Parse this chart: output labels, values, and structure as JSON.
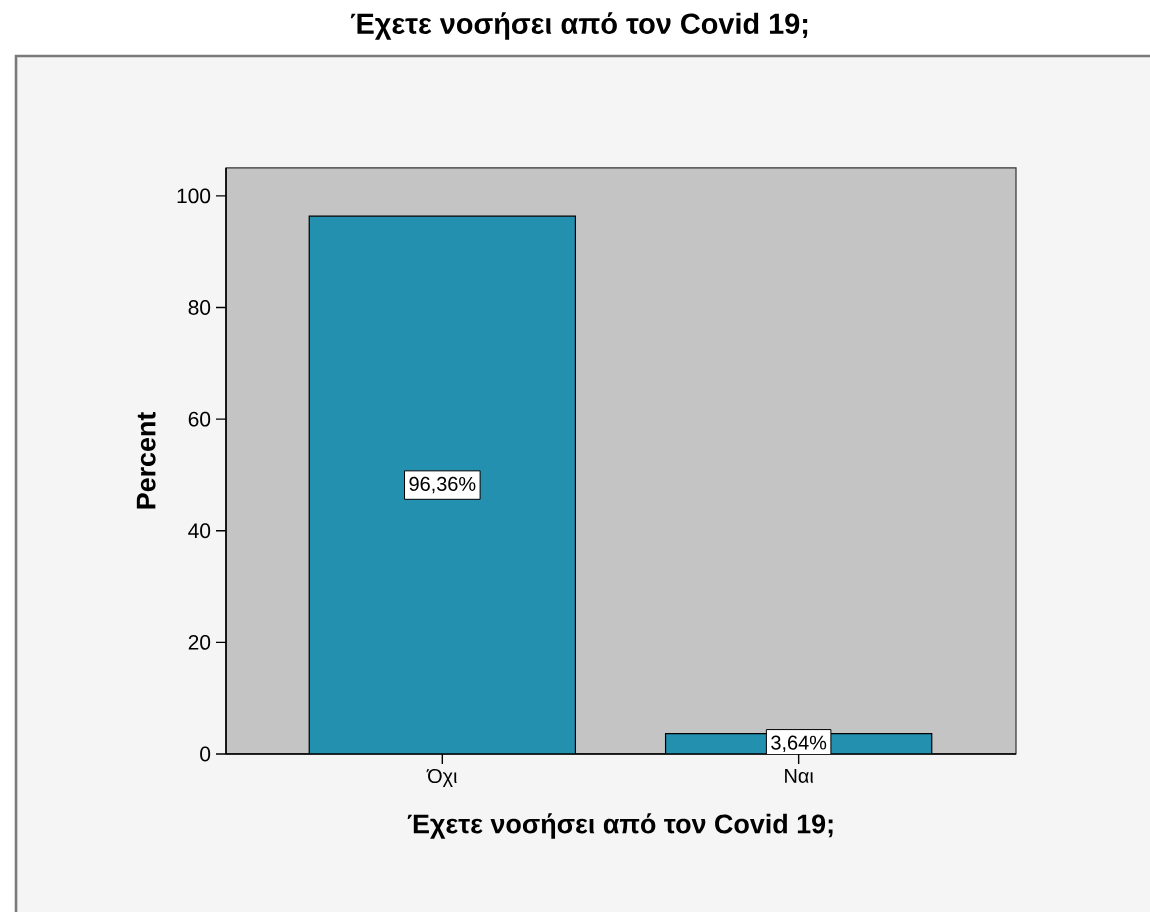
{
  "chart_data": {
    "type": "bar",
    "title": "Έχετε νοσήσει από τον Covid 19;",
    "xlabel": "Έχετε νοσήσει από τον Covid 19;",
    "ylabel": "Percent",
    "categories": [
      "Όχι",
      "Ναι"
    ],
    "values": [
      96.36,
      3.64
    ],
    "color": "#2490b0",
    "value_labels": [
      "96,36%",
      "3,64%"
    ],
    "ylim": [
      0,
      105
    ],
    "yticks": [
      0,
      20,
      40,
      60,
      80,
      100
    ]
  }
}
